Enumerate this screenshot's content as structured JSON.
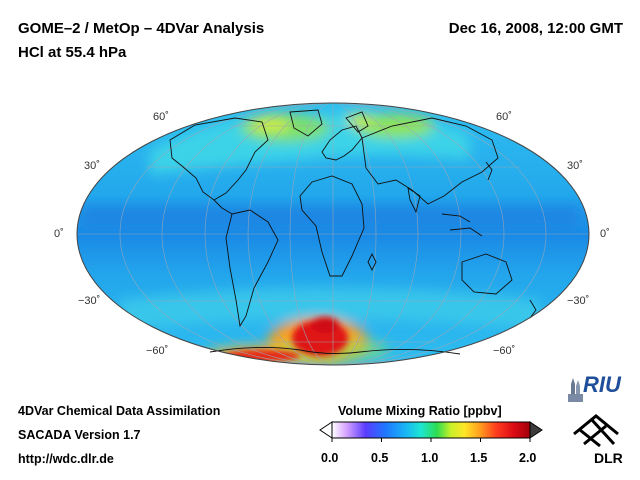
{
  "header": {
    "title_line1": "GOME–2 / MetOp – 4DVar Analysis",
    "title_line2": "HCl at 55.4 hPa",
    "datetime": "Dec 16, 2008, 12:00 GMT"
  },
  "map": {
    "projection": "Mollweide",
    "latitude_labels": {
      "lat_60n_left": "60˚",
      "lat_60n_right": "60˚",
      "lat_30n_left": "30˚",
      "lat_30n_right": "30˚",
      "lat_0_left": "0˚",
      "lat_0_right": "0˚",
      "lat_30s_left": "−30˚",
      "lat_30s_right": "−30˚",
      "lat_60s_left": "−60˚",
      "lat_60s_right": "−60˚"
    }
  },
  "colorbar": {
    "title": "Volume Mixing Ratio [ppbv]",
    "ticks": [
      "0.0",
      "0.5",
      "1.0",
      "1.5",
      "2.0"
    ],
    "colors": [
      "#ffffff",
      "#d9a6ff",
      "#5a3cff",
      "#1e78ff",
      "#19b4f5",
      "#1ee6d2",
      "#2ddc50",
      "#c8f028",
      "#ffe628",
      "#ff9b1e",
      "#ff3c1e",
      "#dc0a14",
      "#a0000a"
    ]
  },
  "footer": {
    "line1": "4DVar Chemical Data Assimilation",
    "line2": "SACADA Version 1.7",
    "line3": "http://wdc.dlr.de"
  },
  "logos": {
    "riu": "RIU",
    "dlr": "DLR"
  }
}
